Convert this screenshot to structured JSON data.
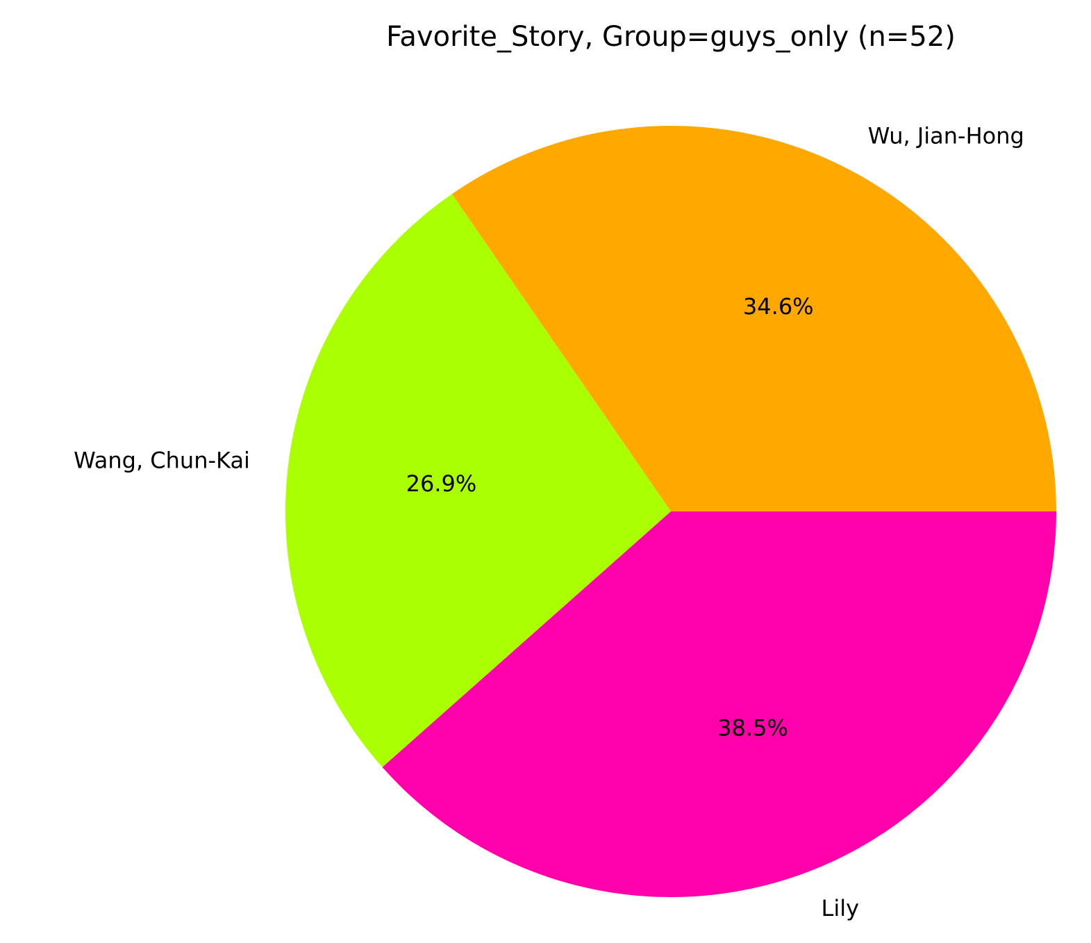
{
  "chart_data": {
    "type": "pie",
    "title": "Favorite_Story, Group=guys_only (n=52)",
    "slices": [
      {
        "label": "Wu, Jian-Hong",
        "value": 18,
        "percent_label": "34.6%",
        "color": "#ffa800"
      },
      {
        "label": "Wang, Chun-Kai",
        "value": 14,
        "percent_label": "26.9%",
        "color": "#aaff00"
      },
      {
        "label": "Lily",
        "value": 20,
        "percent_label": "38.5%",
        "color": "#ff00aa"
      }
    ],
    "start_angle_deg": 0,
    "direction": "counterclockwise"
  }
}
